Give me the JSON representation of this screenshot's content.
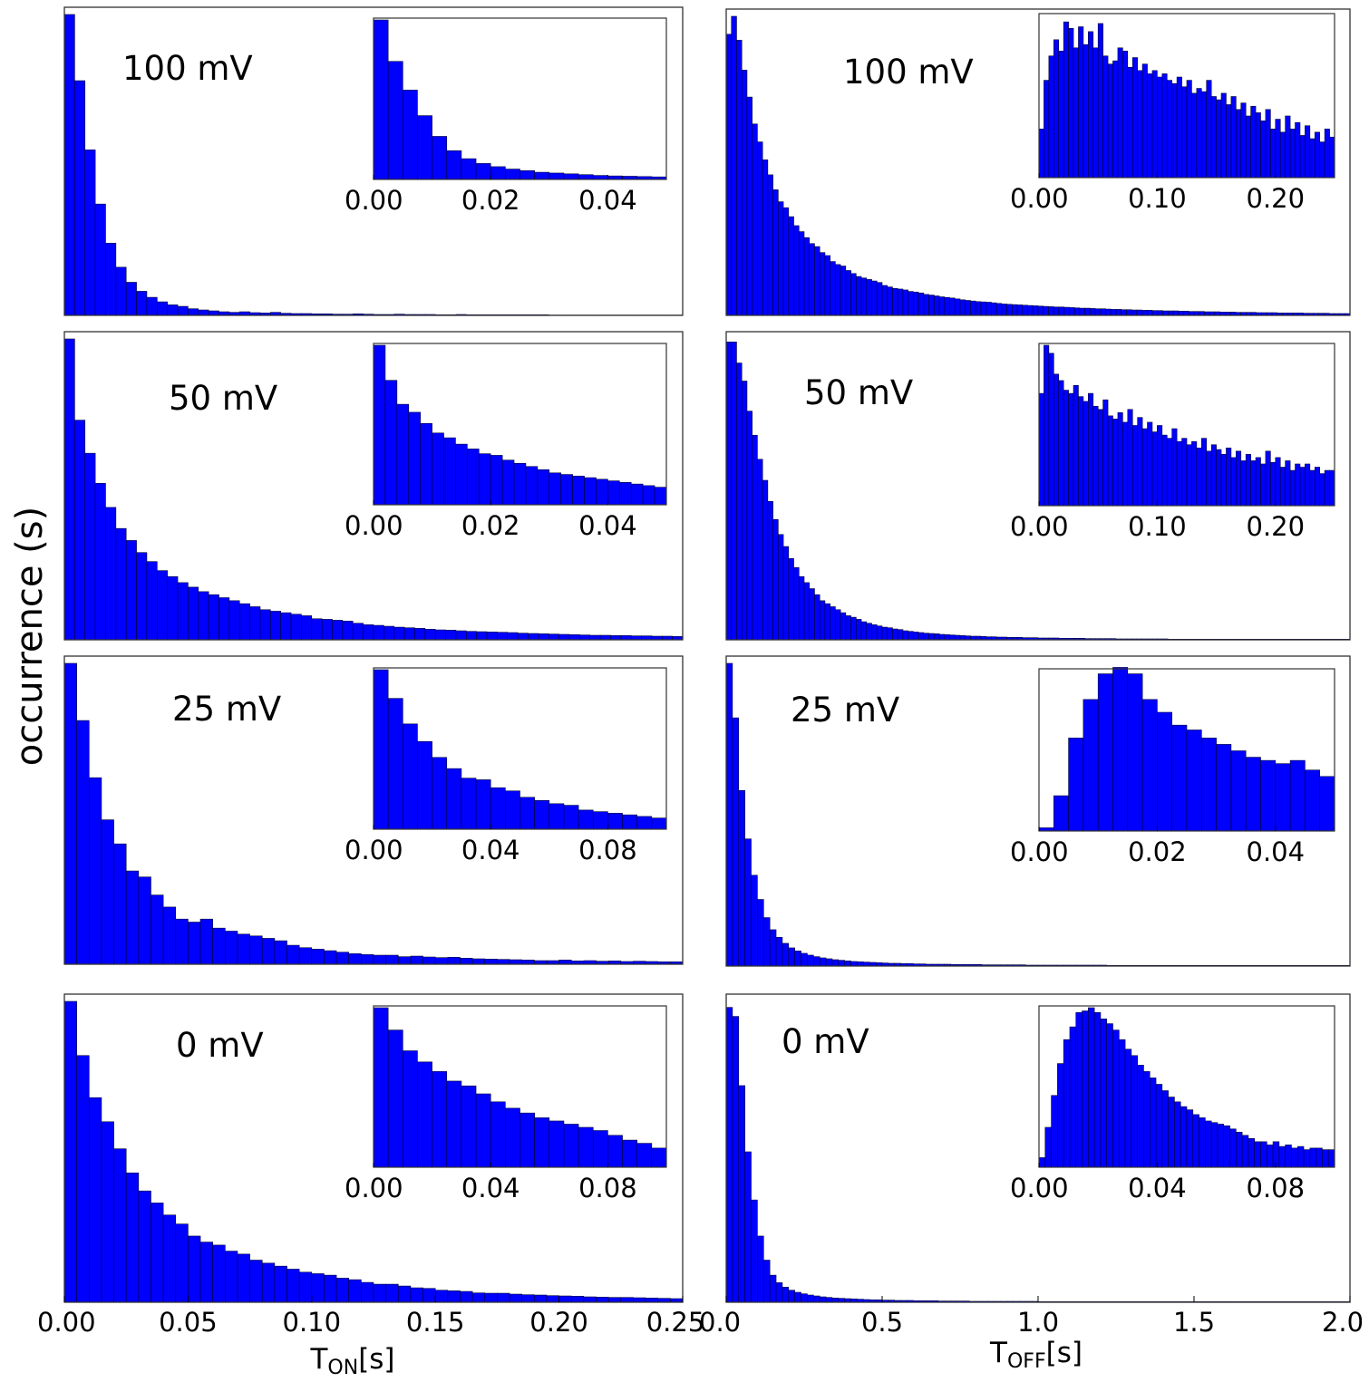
{
  "figure": {
    "ylabel": "occurrence (s)",
    "left_xlabel": {
      "base": "T",
      "sub": "ON",
      "unit": "[s]"
    },
    "right_xlabel": {
      "base": "T",
      "sub": "OFF",
      "unit": "[s]"
    },
    "colors": {
      "bar": "#0000ff",
      "edge": "#000033",
      "frame": "#333333"
    }
  },
  "chart_data": [
    {
      "id": "ton-100mV",
      "type": "bar",
      "label": "100 mV",
      "xlim": [
        0,
        0.25
      ],
      "ylim": [
        0,
        1
      ],
      "values": [
        1.0,
        0.78,
        0.55,
        0.37,
        0.24,
        0.16,
        0.11,
        0.08,
        0.06,
        0.045,
        0.035,
        0.03,
        0.022,
        0.018,
        0.015,
        0.012,
        0.01,
        0.012,
        0.009,
        0.008,
        0.01,
        0.007,
        0.006,
        0.006,
        0.005,
        0.005,
        0.004,
        0.004,
        0.005,
        0.004,
        0.003,
        0.003,
        0.004,
        0.003,
        0.003,
        0.003,
        0.002,
        0.002,
        0.003,
        0.002,
        0.002,
        0.002,
        0.002,
        0.002,
        0.002,
        0.002,
        0.002,
        0.001,
        0.001,
        0.001,
        0.001,
        0.001,
        0.001,
        0.001,
        0.001,
        0.001,
        0.001,
        0.001,
        0.001,
        0.001
      ],
      "inset": {
        "xlim": [
          0,
          0.05
        ],
        "ticks": [
          "0.00",
          "0.02",
          "0.04"
        ],
        "tick_values": [
          0,
          0.02,
          0.04
        ],
        "values": [
          1.0,
          0.74,
          0.56,
          0.4,
          0.27,
          0.18,
          0.13,
          0.1,
          0.08,
          0.065,
          0.055,
          0.045,
          0.04,
          0.035,
          0.03,
          0.025,
          0.022,
          0.02,
          0.018,
          0.016
        ]
      }
    },
    {
      "id": "toff-100mV",
      "type": "bar",
      "label": "100 mV",
      "xlim": [
        0,
        2.0
      ],
      "ylim": [
        0,
        1
      ],
      "values": [
        0.94,
        1.0,
        0.92,
        0.82,
        0.73,
        0.64,
        0.58,
        0.52,
        0.47,
        0.42,
        0.38,
        0.36,
        0.33,
        0.3,
        0.28,
        0.26,
        0.24,
        0.23,
        0.21,
        0.2,
        0.18,
        0.17,
        0.165,
        0.15,
        0.14,
        0.13,
        0.125,
        0.12,
        0.115,
        0.11,
        0.1,
        0.095,
        0.09,
        0.088,
        0.085,
        0.08,
        0.078,
        0.075,
        0.07,
        0.068,
        0.065,
        0.062,
        0.06,
        0.058,
        0.055,
        0.052,
        0.05,
        0.048,
        0.046,
        0.045,
        0.044,
        0.042,
        0.04,
        0.038,
        0.037,
        0.036,
        0.035,
        0.034,
        0.033,
        0.032,
        0.031,
        0.03,
        0.029,
        0.028,
        0.028,
        0.027,
        0.026,
        0.025,
        0.024,
        0.024,
        0.023,
        0.022,
        0.022,
        0.021,
        0.02,
        0.02,
        0.019,
        0.019,
        0.018,
        0.018,
        0.017,
        0.017,
        0.016,
        0.016,
        0.015,
        0.015,
        0.015,
        0.014,
        0.014,
        0.013,
        0.013,
        0.013,
        0.012,
        0.012,
        0.012,
        0.011,
        0.011,
        0.011,
        0.01,
        0.01,
        0.01,
        0.01,
        0.009,
        0.009,
        0.009,
        0.009,
        0.008,
        0.008,
        0.008,
        0.008,
        0.008,
        0.007,
        0.007,
        0.007,
        0.007,
        0.007,
        0.006,
        0.006,
        0.006,
        0.006
      ],
      "inset": {
        "xlim": [
          0,
          0.25
        ],
        "ticks": [
          "0.00",
          "0.10",
          "0.20"
        ],
        "tick_values": [
          0,
          0.1,
          0.2
        ],
        "values": [
          0.3,
          0.6,
          0.75,
          0.85,
          0.78,
          0.96,
          0.92,
          0.8,
          0.93,
          0.82,
          0.9,
          0.8,
          0.95,
          0.75,
          0.7,
          0.72,
          0.8,
          0.78,
          0.68,
          0.74,
          0.66,
          0.7,
          0.64,
          0.66,
          0.62,
          0.64,
          0.6,
          0.58,
          0.62,
          0.56,
          0.6,
          0.52,
          0.55,
          0.53,
          0.6,
          0.5,
          0.48,
          0.52,
          0.45,
          0.5,
          0.42,
          0.46,
          0.38,
          0.44,
          0.4,
          0.35,
          0.42,
          0.3,
          0.36,
          0.28,
          0.38,
          0.3,
          0.34,
          0.26,
          0.32,
          0.24,
          0.28,
          0.22,
          0.3,
          0.25
        ]
      }
    },
    {
      "id": "ton-50mV",
      "type": "bar",
      "label": "50 mV",
      "xlim": [
        0,
        0.25
      ],
      "ylim": [
        0,
        1
      ],
      "values": [
        1.0,
        0.73,
        0.62,
        0.52,
        0.44,
        0.37,
        0.33,
        0.29,
        0.26,
        0.23,
        0.21,
        0.19,
        0.175,
        0.16,
        0.15,
        0.14,
        0.13,
        0.12,
        0.11,
        0.1,
        0.095,
        0.09,
        0.085,
        0.08,
        0.07,
        0.068,
        0.065,
        0.062,
        0.055,
        0.05,
        0.048,
        0.045,
        0.042,
        0.04,
        0.038,
        0.035,
        0.033,
        0.032,
        0.03,
        0.028,
        0.027,
        0.026,
        0.025,
        0.024,
        0.022,
        0.021,
        0.02,
        0.019,
        0.018,
        0.017,
        0.016,
        0.015,
        0.015,
        0.014,
        0.014,
        0.013,
        0.013,
        0.012,
        0.012,
        0.011
      ],
      "inset": {
        "xlim": [
          0,
          0.05
        ],
        "ticks": [
          "0.00",
          "0.02",
          "0.04"
        ],
        "tick_values": [
          0,
          0.02,
          0.04
        ],
        "values": [
          1.0,
          0.78,
          0.63,
          0.58,
          0.51,
          0.45,
          0.42,
          0.38,
          0.35,
          0.32,
          0.31,
          0.28,
          0.26,
          0.24,
          0.22,
          0.2,
          0.19,
          0.18,
          0.17,
          0.16,
          0.15,
          0.14,
          0.13,
          0.12,
          0.11
        ]
      }
    },
    {
      "id": "toff-50mV",
      "type": "bar",
      "label": "50 mV",
      "xlim": [
        0,
        2.0
      ],
      "ylim": [
        0,
        1
      ],
      "values": [
        0.99,
        0.99,
        0.92,
        0.86,
        0.76,
        0.68,
        0.6,
        0.53,
        0.46,
        0.4,
        0.35,
        0.31,
        0.27,
        0.24,
        0.21,
        0.19,
        0.17,
        0.15,
        0.13,
        0.12,
        0.11,
        0.1,
        0.09,
        0.08,
        0.075,
        0.068,
        0.06,
        0.055,
        0.05,
        0.046,
        0.042,
        0.04,
        0.036,
        0.034,
        0.03,
        0.028,
        0.026,
        0.024,
        0.022,
        0.021,
        0.02,
        0.018,
        0.017,
        0.016,
        0.015,
        0.014,
        0.013,
        0.012,
        0.012,
        0.011,
        0.01,
        0.01,
        0.009,
        0.009,
        0.008,
        0.008,
        0.008,
        0.007,
        0.007,
        0.007,
        0.006,
        0.006,
        0.006,
        0.006,
        0.005,
        0.005,
        0.005,
        0.005,
        0.005,
        0.004,
        0.004,
        0.004,
        0.004,
        0.004,
        0.004,
        0.003,
        0.003,
        0.003,
        0.003,
        0.003,
        0.003,
        0.003,
        0.003,
        0.003,
        0.003,
        0.002,
        0.002,
        0.002,
        0.002,
        0.002,
        0.002,
        0.002,
        0.002,
        0.002,
        0.002,
        0.002,
        0.002,
        0.002,
        0.002,
        0.002,
        0.002,
        0.002,
        0.002,
        0.002,
        0.002,
        0.002,
        0.002,
        0.002,
        0.002,
        0.002,
        0.002,
        0.002,
        0.002,
        0.002,
        0.002,
        0.002,
        0.002,
        0.002,
        0.002,
        0.002
      ],
      "inset": {
        "xlim": [
          0,
          0.25
        ],
        "ticks": [
          "0.00",
          "0.10",
          "0.20"
        ],
        "tick_values": [
          0,
          0.1,
          0.2
        ],
        "values": [
          0.7,
          1.0,
          0.95,
          0.82,
          0.78,
          0.72,
          0.7,
          0.75,
          0.68,
          0.65,
          0.7,
          0.62,
          0.6,
          0.66,
          0.56,
          0.54,
          0.58,
          0.52,
          0.6,
          0.5,
          0.55,
          0.48,
          0.52,
          0.46,
          0.5,
          0.44,
          0.42,
          0.48,
          0.4,
          0.42,
          0.38,
          0.4,
          0.36,
          0.42,
          0.34,
          0.38,
          0.35,
          0.32,
          0.36,
          0.3,
          0.34,
          0.28,
          0.32,
          0.28,
          0.3,
          0.26,
          0.34,
          0.27,
          0.3,
          0.24,
          0.28,
          0.22,
          0.26,
          0.24,
          0.26,
          0.22,
          0.24,
          0.2,
          0.22,
          0.22
        ]
      }
    },
    {
      "id": "ton-25mV",
      "type": "bar",
      "label": "25 mV",
      "xlim": [
        0,
        0.25
      ],
      "ylim": [
        0,
        1
      ],
      "values": [
        1.0,
        0.81,
        0.62,
        0.48,
        0.4,
        0.31,
        0.29,
        0.23,
        0.19,
        0.15,
        0.14,
        0.15,
        0.12,
        0.11,
        0.1,
        0.094,
        0.086,
        0.078,
        0.063,
        0.055,
        0.05,
        0.045,
        0.04,
        0.035,
        0.032,
        0.03,
        0.03,
        0.025,
        0.027,
        0.024,
        0.022,
        0.023,
        0.02,
        0.018,
        0.017,
        0.016,
        0.015,
        0.014,
        0.012,
        0.012,
        0.014,
        0.011,
        0.012,
        0.01,
        0.011,
        0.009,
        0.01,
        0.009,
        0.008,
        0.008
      ],
      "inset": {
        "xlim": [
          0,
          0.1
        ],
        "ticks": [
          "0.00",
          "0.04",
          "0.08"
        ],
        "tick_values": [
          0,
          0.04,
          0.08
        ],
        "values": [
          1.0,
          0.82,
          0.66,
          0.55,
          0.45,
          0.38,
          0.32,
          0.31,
          0.26,
          0.24,
          0.2,
          0.18,
          0.16,
          0.15,
          0.12,
          0.11,
          0.1,
          0.09,
          0.08,
          0.07
        ]
      }
    },
    {
      "id": "toff-25mV",
      "type": "bar",
      "label": "25 mV",
      "xlim": [
        0,
        2.0
      ],
      "ylim": [
        0,
        1
      ],
      "values": [
        1.0,
        0.82,
        0.58,
        0.42,
        0.3,
        0.22,
        0.16,
        0.12,
        0.095,
        0.075,
        0.06,
        0.05,
        0.042,
        0.036,
        0.031,
        0.027,
        0.024,
        0.021,
        0.019,
        0.017,
        0.015,
        0.014,
        0.013,
        0.012,
        0.011,
        0.01,
        0.009,
        0.009,
        0.008,
        0.008,
        0.007,
        0.007,
        0.006,
        0.006,
        0.006,
        0.006,
        0.005,
        0.005,
        0.005,
        0.005,
        0.005,
        0.004,
        0.004,
        0.004,
        0.004,
        0.004,
        0.004,
        0.004,
        0.003,
        0.003,
        0.003,
        0.003,
        0.003,
        0.003,
        0.003,
        0.003,
        0.003,
        0.003,
        0.003,
        0.003,
        0.003,
        0.002,
        0.002,
        0.002,
        0.002,
        0.002,
        0.002,
        0.002,
        0.002,
        0.002,
        0.002,
        0.002,
        0.002,
        0.002,
        0.002,
        0.002,
        0.002,
        0.002,
        0.002,
        0.002,
        0.002,
        0.002,
        0.002,
        0.002,
        0.002,
        0.002,
        0.002,
        0.002,
        0.002,
        0.002,
        0.002,
        0.002,
        0.002,
        0.002,
        0.002,
        0.002,
        0.002,
        0.002,
        0.002,
        0.002
      ],
      "inset": {
        "xlim": [
          0,
          0.05
        ],
        "ticks": [
          "0.00",
          "0.02",
          "0.04"
        ],
        "tick_values": [
          0,
          0.02,
          0.04
        ],
        "values": [
          0.02,
          0.22,
          0.58,
          0.82,
          0.98,
          1.02,
          0.98,
          0.82,
          0.74,
          0.66,
          0.63,
          0.58,
          0.54,
          0.5,
          0.46,
          0.44,
          0.42,
          0.44,
          0.38,
          0.34
        ]
      }
    },
    {
      "id": "ton-0mV",
      "type": "bar",
      "label": "0 mV",
      "xlim": [
        0,
        0.25
      ],
      "ylim": [
        0,
        1
      ],
      "values": [
        1.0,
        0.82,
        0.68,
        0.6,
        0.51,
        0.43,
        0.37,
        0.33,
        0.29,
        0.26,
        0.22,
        0.2,
        0.19,
        0.17,
        0.16,
        0.14,
        0.13,
        0.12,
        0.11,
        0.1,
        0.095,
        0.09,
        0.08,
        0.075,
        0.066,
        0.06,
        0.06,
        0.054,
        0.048,
        0.046,
        0.04,
        0.038,
        0.036,
        0.031,
        0.03,
        0.03,
        0.027,
        0.025,
        0.024,
        0.022,
        0.021,
        0.02,
        0.018,
        0.017,
        0.016,
        0.016,
        0.015,
        0.014,
        0.013,
        0.012
      ],
      "inset": {
        "xlim": [
          0,
          0.1
        ],
        "ticks": [
          "0.00",
          "0.04",
          "0.08"
        ],
        "tick_values": [
          0,
          0.04,
          0.08
        ],
        "values": [
          1.0,
          0.86,
          0.73,
          0.66,
          0.6,
          0.54,
          0.51,
          0.46,
          0.41,
          0.37,
          0.34,
          0.31,
          0.29,
          0.27,
          0.25,
          0.23,
          0.2,
          0.17,
          0.15,
          0.12
        ]
      }
    },
    {
      "id": "toff-0mV",
      "type": "bar",
      "label": "0 mV",
      "xlim": [
        0,
        2.0
      ],
      "ylim": [
        0,
        1
      ],
      "values": [
        0.98,
        0.95,
        0.72,
        0.5,
        0.34,
        0.22,
        0.14,
        0.09,
        0.065,
        0.05,
        0.04,
        0.033,
        0.028,
        0.024,
        0.021,
        0.018,
        0.016,
        0.014,
        0.013,
        0.012,
        0.011,
        0.01,
        0.009,
        0.008,
        0.008,
        0.007,
        0.007,
        0.006,
        0.006,
        0.006,
        0.005,
        0.005,
        0.005,
        0.005,
        0.004,
        0.004,
        0.004,
        0.004,
        0.004,
        0.003,
        0.003,
        0.003,
        0.003,
        0.003,
        0.003,
        0.003,
        0.003,
        0.003,
        0.003,
        0.003,
        0.002,
        0.002,
        0.002,
        0.002,
        0.002,
        0.002,
        0.002,
        0.002,
        0.002,
        0.002,
        0.002,
        0.002,
        0.002,
        0.002,
        0.002,
        0.002,
        0.002,
        0.002,
        0.002,
        0.002,
        0.002,
        0.002,
        0.002,
        0.002,
        0.002,
        0.002,
        0.002,
        0.002,
        0.002,
        0.002,
        0.002,
        0.002,
        0.002,
        0.002,
        0.002,
        0.002,
        0.002,
        0.002,
        0.002,
        0.002,
        0.002,
        0.002,
        0.002,
        0.002,
        0.002,
        0.002,
        0.002,
        0.002,
        0.002,
        0.002
      ],
      "inset": {
        "xlim": [
          0,
          0.1
        ],
        "ticks": [
          "0.00",
          "0.04",
          "0.08"
        ],
        "tick_values": [
          0,
          0.04,
          0.08
        ],
        "values": [
          0.06,
          0.25,
          0.45,
          0.65,
          0.8,
          0.88,
          0.97,
          0.98,
          1.0,
          0.97,
          0.93,
          0.9,
          0.86,
          0.8,
          0.74,
          0.7,
          0.64,
          0.6,
          0.56,
          0.52,
          0.48,
          0.44,
          0.41,
          0.38,
          0.36,
          0.33,
          0.31,
          0.29,
          0.28,
          0.27,
          0.26,
          0.24,
          0.22,
          0.2,
          0.18,
          0.16,
          0.16,
          0.14,
          0.16,
          0.13,
          0.14,
          0.12,
          0.13,
          0.11,
          0.12,
          0.12,
          0.11,
          0.11
        ]
      }
    }
  ],
  "bottom_axes": {
    "left": {
      "ticks": [
        "0.00",
        "0.05",
        "0.10",
        "0.15",
        "0.20",
        "0.25"
      ],
      "tick_values": [
        0,
        0.05,
        0.1,
        0.15,
        0.2,
        0.25
      ]
    },
    "right": {
      "ticks": [
        "0.0",
        "0.5",
        "1.0",
        "1.5",
        "2.0"
      ],
      "tick_values": [
        0,
        0.5,
        1.0,
        1.5,
        2.0
      ]
    }
  }
}
